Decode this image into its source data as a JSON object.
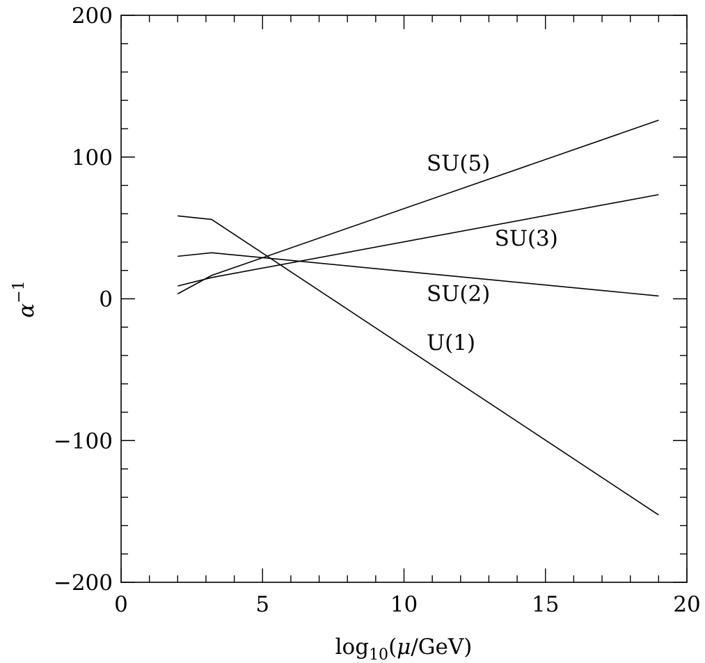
{
  "chart_data": {
    "type": "line",
    "xlabel": {
      "prefix": "log",
      "subscript": "10",
      "open": "(",
      "mu": "μ",
      "suffix": "/GeV)"
    },
    "ylabel": {
      "base": "α",
      "superscript": "−1"
    },
    "xlim": [
      0,
      20
    ],
    "ylim": [
      -200,
      200
    ],
    "x_ticks": [
      0,
      5,
      10,
      15,
      20
    ],
    "x_tick_labels": [
      "0",
      "5",
      "10",
      "15",
      "20"
    ],
    "x_minor_step": 1,
    "y_ticks": [
      -200,
      -100,
      0,
      100,
      200
    ],
    "y_tick_labels": [
      "−200",
      "−100",
      "0",
      "100",
      "200"
    ],
    "y_minor_step": 20,
    "grid": false,
    "legend": "none",
    "series": [
      {
        "name": "SU(5)",
        "points": [
          [
            2.0,
            3.5
          ],
          [
            3.2,
            16.5
          ],
          [
            19.0,
            126.0
          ]
        ],
        "label_at": [
          10.8,
          90.5
        ]
      },
      {
        "name": "SU(3)",
        "points": [
          [
            2.0,
            9.0
          ],
          [
            3.2,
            15.0
          ],
          [
            19.0,
            73.5
          ]
        ],
        "label_at": [
          13.2,
          37.5
        ]
      },
      {
        "name": "SU(2)",
        "points": [
          [
            2.0,
            30.0
          ],
          [
            3.2,
            32.5
          ],
          [
            19.0,
            2.0
          ]
        ],
        "label_at": [
          10.8,
          -1.5
        ]
      },
      {
        "name": "U(1)",
        "points": [
          [
            2.0,
            58.5
          ],
          [
            3.2,
            56.0
          ],
          [
            19.0,
            -152.5
          ]
        ],
        "label_at": [
          10.8,
          -36.0
        ]
      }
    ]
  }
}
